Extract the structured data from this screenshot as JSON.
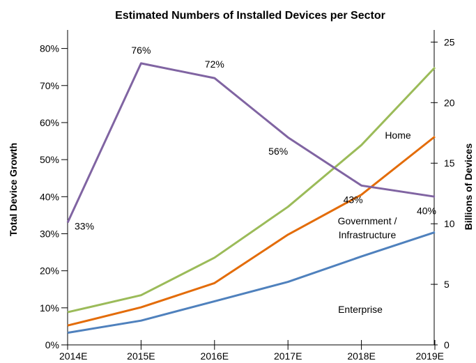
{
  "chart_data": {
    "type": "line",
    "title": "Estimated Numbers of Installed Devices per Sector",
    "categories": [
      "2014E",
      "2015E",
      "2016E",
      "2017E",
      "2018E",
      "2019E"
    ],
    "y_left": {
      "label": "Total Device Growth",
      "ylim": [
        0,
        85
      ],
      "ticks": [
        0,
        10,
        20,
        30,
        40,
        50,
        60,
        70,
        80
      ],
      "tick_labels": [
        "0%",
        "10%",
        "20%",
        "30%",
        "40%",
        "50%",
        "60%",
        "70%",
        "80%"
      ]
    },
    "y_right": {
      "label": "Billions of Devices",
      "ylim": [
        0,
        26
      ],
      "ticks": [
        0,
        5,
        10,
        15,
        20,
        25
      ],
      "tick_labels": [
        "0",
        "5",
        "10",
        "15",
        "20",
        "25"
      ]
    },
    "growth_series": {
      "axis": "left",
      "color": "#8064a2",
      "values": [
        33,
        76,
        72,
        56,
        43,
        40
      ],
      "data_labels": [
        "33%",
        "76%",
        "72%",
        "56%",
        "43%",
        "40%"
      ]
    },
    "series": [
      {
        "name": "Home",
        "axis": "right",
        "color": "#9bbb59",
        "values": [
          2.7,
          4.1,
          7.2,
          11.4,
          16.5,
          22.9
        ]
      },
      {
        "name": "Government / Infrastructure",
        "axis": "right",
        "color": "#e36c09",
        "values": [
          1.6,
          3.1,
          5.1,
          9.1,
          12.4,
          17.2
        ]
      },
      {
        "name": "Enterprise",
        "axis": "right",
        "color": "#4f81bd",
        "values": [
          1.0,
          2.0,
          3.6,
          5.2,
          7.3,
          9.3
        ]
      }
    ],
    "series_label_lines": [
      [
        "Home"
      ],
      [
        "Government /",
        "Infrastructure"
      ],
      [
        "Enterprise"
      ]
    ],
    "grid": false,
    "legend": "none"
  }
}
